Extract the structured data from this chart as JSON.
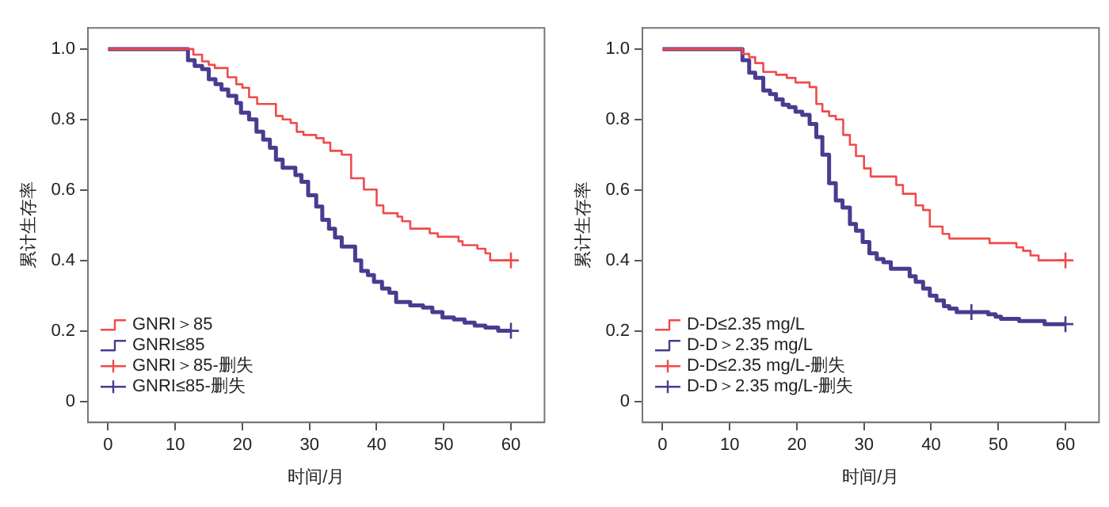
{
  "chart_data": [
    {
      "type": "step",
      "xlabel": "时间/月",
      "ylabel": "累计生存率",
      "xlim": [
        -3,
        65
      ],
      "ylim": [
        -0.06,
        1.06
      ],
      "xticks": [
        0,
        10,
        20,
        30,
        40,
        50,
        60
      ],
      "yticks": [
        0,
        0.2,
        0.4,
        0.6,
        0.8,
        {
          "value": 1,
          "label": "1.0"
        }
      ],
      "grid": false,
      "legend": "bottom left",
      "series": [
        {
          "name": "GNRI＞85",
          "color": "#f04a4a",
          "x": [
            0,
            12.7,
            14.0,
            15.0,
            15.9,
            17.8,
            19.1,
            20.0,
            21.0,
            22.2,
            25.0,
            26.0,
            27.2,
            28.1,
            29.1,
            31.0,
            32.1,
            33.1,
            34.8,
            36.2,
            38.1,
            40.0,
            41.0,
            43.1,
            43.8,
            45.0,
            47.9,
            49.1,
            52.2,
            52.8,
            55.0,
            56.2,
            56.9,
            60
          ],
          "values": [
            1,
            0.984,
            0.965,
            0.955,
            0.946,
            0.92,
            0.9,
            0.89,
            0.863,
            0.844,
            0.81,
            0.8,
            0.79,
            0.765,
            0.756,
            0.747,
            0.734,
            0.711,
            0.7,
            0.633,
            0.601,
            0.556,
            0.534,
            0.524,
            0.511,
            0.49,
            0.477,
            0.467,
            0.454,
            0.443,
            0.433,
            0.42,
            0.4,
            0.4
          ]
        },
        {
          "name": "GNRI≤85",
          "color": "#4a3b90",
          "x": [
            0,
            11.9,
            12.9,
            14.0,
            15.0,
            16.0,
            16.9,
            17.9,
            19.1,
            19.8,
            21.0,
            22.1,
            23.1,
            24.1,
            25.0,
            26.0,
            27.9,
            28.8,
            29.8,
            31.0,
            31.9,
            32.9,
            33.8,
            34.8,
            36.8,
            37.7,
            38.7,
            39.6,
            40.8,
            41.9,
            42.9,
            45.0,
            46.9,
            48.3,
            49.8,
            51.5,
            53.1,
            54.6,
            56.2,
            58.1,
            60
          ],
          "values": [
            1,
            0.968,
            0.952,
            0.943,
            0.914,
            0.9,
            0.885,
            0.867,
            0.847,
            0.819,
            0.8,
            0.765,
            0.743,
            0.72,
            0.686,
            0.663,
            0.642,
            0.623,
            0.585,
            0.553,
            0.515,
            0.49,
            0.465,
            0.439,
            0.4,
            0.37,
            0.358,
            0.339,
            0.32,
            0.308,
            0.282,
            0.272,
            0.266,
            0.253,
            0.238,
            0.232,
            0.223,
            0.215,
            0.209,
            0.2,
            0.2
          ]
        },
        {
          "name": "GNRI＞85-删失",
          "color": "#f04a4a",
          "type": "scatter",
          "marker": "cross",
          "x": [
            60
          ],
          "values": [
            0.4
          ]
        },
        {
          "name": "GNRI≤85-删失",
          "color": "#4a3b90",
          "type": "scatter",
          "marker": "cross",
          "x": [
            60
          ],
          "values": [
            0.2
          ]
        }
      ]
    },
    {
      "type": "step",
      "xlabel": "时间/月",
      "ylabel": "累计生存率",
      "xlim": [
        -3,
        65
      ],
      "ylim": [
        -0.06,
        1.06
      ],
      "xticks": [
        0,
        10,
        20,
        30,
        40,
        50,
        60
      ],
      "yticks": [
        0,
        0.2,
        0.4,
        0.6,
        0.8,
        {
          "value": 1,
          "label": "1.0"
        }
      ],
      "grid": false,
      "legend": "bottom left",
      "series": [
        {
          "name": "D-D≤2.35 mg/L",
          "color": "#f04a4a",
          "x": [
            0,
            11.9,
            12.9,
            13.8,
            15.0,
            16.9,
            18.5,
            19.8,
            21.9,
            22.9,
            23.8,
            24.8,
            25.8,
            26.9,
            27.9,
            28.8,
            30.0,
            31.0,
            34.8,
            35.8,
            37.7,
            38.8,
            39.8,
            41.7,
            42.7,
            48.7,
            52.7,
            53.7,
            54.8,
            56.0,
            60
          ],
          "values": [
            1,
            0.986,
            0.977,
            0.96,
            0.935,
            0.927,
            0.918,
            0.905,
            0.892,
            0.844,
            0.823,
            0.81,
            0.8,
            0.756,
            0.728,
            0.696,
            0.661,
            0.638,
            0.614,
            0.589,
            0.556,
            0.543,
            0.496,
            0.475,
            0.462,
            0.449,
            0.437,
            0.427,
            0.414,
            0.4,
            0.4
          ]
        },
        {
          "name": "D-D＞2.35 mg/L",
          "color": "#4a3b90",
          "x": [
            0,
            11.9,
            12.9,
            13.8,
            15.0,
            16.0,
            16.9,
            17.9,
            18.8,
            19.8,
            20.8,
            21.9,
            22.9,
            23.8,
            24.8,
            25.8,
            26.8,
            27.9,
            28.8,
            29.8,
            30.8,
            31.9,
            32.9,
            34.0,
            36.8,
            37.7,
            38.8,
            39.8,
            40.8,
            41.9,
            42.7,
            43.8,
            48.5,
            49.6,
            50.4,
            53.1,
            56.9,
            60
          ],
          "values": [
            1,
            0.968,
            0.933,
            0.918,
            0.882,
            0.872,
            0.857,
            0.842,
            0.835,
            0.822,
            0.813,
            0.787,
            0.75,
            0.7,
            0.619,
            0.57,
            0.55,
            0.503,
            0.484,
            0.452,
            0.42,
            0.404,
            0.395,
            0.376,
            0.355,
            0.339,
            0.32,
            0.3,
            0.286,
            0.27,
            0.263,
            0.253,
            0.247,
            0.24,
            0.234,
            0.228,
            0.219,
            0.219
          ]
        },
        {
          "name": "D-D≤2.35 mg/L-删失",
          "color": "#f04a4a",
          "type": "scatter",
          "marker": "cross",
          "x": [
            60
          ],
          "values": [
            0.4
          ]
        },
        {
          "name": "D-D＞2.35 mg/L-删失",
          "color": "#4a3b90",
          "type": "scatter",
          "marker": "cross",
          "x": [
            46.0,
            60
          ],
          "values": [
            0.253,
            0.219
          ]
        }
      ]
    }
  ]
}
